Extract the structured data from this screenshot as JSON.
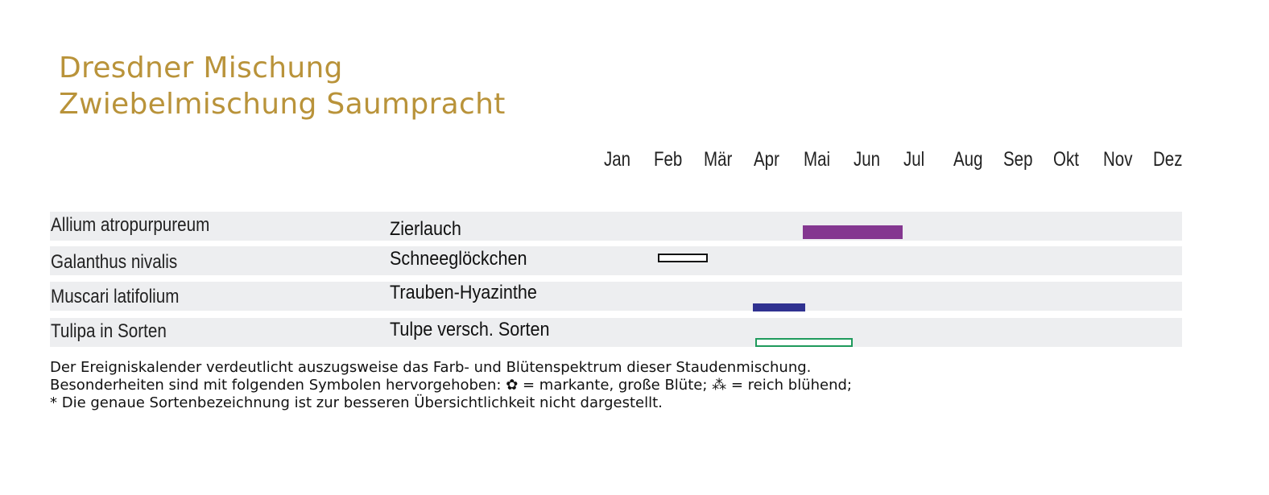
{
  "header": {
    "title_line1": "Dresdner Mischung",
    "title_line2": "Zwiebelmischung Saumpracht",
    "title_color": "#b9933a"
  },
  "chart_data": {
    "type": "gantt",
    "months": [
      "Jan",
      "Feb",
      "Mär",
      "Apr",
      "Mai",
      "Jun",
      "Jul",
      "Aug",
      "Sep",
      "Okt",
      "Nov",
      "Dez"
    ],
    "rows": [
      {
        "latin": "Allium atropurpureum",
        "common": "Zierlauch",
        "start": 4.0,
        "end": 6.0,
        "style": "filled",
        "color": "#843790"
      },
      {
        "latin": "Galanthus nivalis",
        "common": "Schneeglöckchen",
        "start": 1.1,
        "end": 2.1,
        "style": "outline",
        "color": "#111111"
      },
      {
        "latin": "Muscari latifolium",
        "common": "Trauben-Hyazinthe",
        "start": 3.0,
        "end": 4.05,
        "style": "filled",
        "color": "#2f3190"
      },
      {
        "latin": "Tulipa in Sorten",
        "common": "Tulpe versch. Sorten",
        "start": 3.05,
        "end": 5.0,
        "style": "outline",
        "color": "#1f9a5c"
      }
    ]
  },
  "footnotes": {
    "line1": "Der Ereigniskalender verdeutlicht auszugsweise das Farb- und Blütenspektrum dieser Staudenmischung.",
    "line2": "Besonderheiten sind mit folgenden Symbolen hervorgehoben: ✿ = markante, große Blüte; ⁂ = reich blühend;",
    "line3": "* Die genaue Sortenbezeichnung ist zur besseren Übersichtlichkeit nicht dargestellt."
  }
}
